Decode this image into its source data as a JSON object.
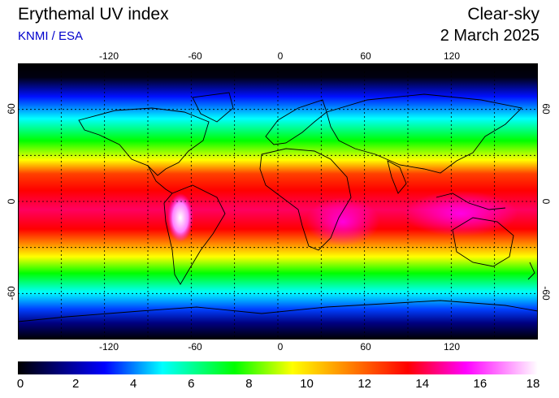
{
  "header": {
    "title": "Erythemal UV index",
    "source": "KNMI / ESA",
    "mode": "Clear-sky",
    "date": "2 March 2025"
  },
  "map": {
    "projection": "equirectangular",
    "lon_range": [
      -180,
      180
    ],
    "lat_range": [
      -90,
      90
    ],
    "graticule_lon": [
      -150,
      -120,
      -90,
      -60,
      -30,
      0,
      30,
      60,
      90,
      120,
      150
    ],
    "graticule_lat": [
      -60,
      -30,
      0,
      30,
      60
    ],
    "x_tick_labels": [
      "-120",
      "-60",
      "0",
      "60",
      "120"
    ],
    "y_tick_labels": [
      "60",
      "0",
      "-60"
    ],
    "coastline_color": "#000000",
    "grid_color": "#000000"
  },
  "colorbar": {
    "min": 0,
    "max": 18,
    "tick_labels": [
      "0",
      "2",
      "4",
      "6",
      "8",
      "10",
      "12",
      "14",
      "16",
      "18"
    ],
    "stops": [
      {
        "v": 0,
        "c": "#000000"
      },
      {
        "v": 3,
        "c": "#0000ff"
      },
      {
        "v": 5,
        "c": "#00ffff"
      },
      {
        "v": 7.5,
        "c": "#00ff00"
      },
      {
        "v": 9.5,
        "c": "#ffff00"
      },
      {
        "v": 11.5,
        "c": "#ff8000"
      },
      {
        "v": 13.5,
        "c": "#ff0000"
      },
      {
        "v": 15.5,
        "c": "#ff00ff"
      },
      {
        "v": 18,
        "c": "#ffffff"
      }
    ]
  }
}
